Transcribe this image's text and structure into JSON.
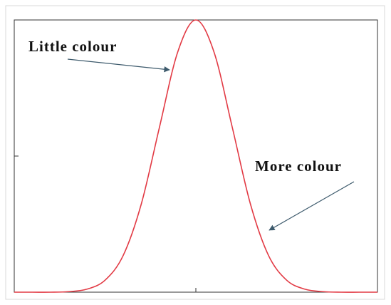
{
  "chart_data": {
    "type": "line",
    "annotations": [
      "Little colour",
      "More colour"
    ],
    "x": [
      -5,
      -4.5,
      -4,
      -3.5,
      -3,
      -2.5,
      -2,
      -1.5,
      -1,
      -0.5,
      0,
      0.5,
      1,
      1.5,
      2,
      2.5,
      3,
      3.5,
      4,
      4.5,
      5
    ],
    "series": [
      {
        "color": "#e23a44",
        "values": [
          0,
          0,
          0,
          0.002,
          0.011,
          0.044,
          0.135,
          0.325,
          0.607,
          0.882,
          1,
          0.882,
          0.607,
          0.325,
          0.135,
          0.044,
          0.011,
          0.002,
          0,
          0,
          0
        ]
      }
    ],
    "xlim": [
      -5,
      5
    ],
    "ylim": [
      0,
      1
    ],
    "xticks": [
      0
    ],
    "yticks": [
      0.5
    ],
    "grid": false
  }
}
